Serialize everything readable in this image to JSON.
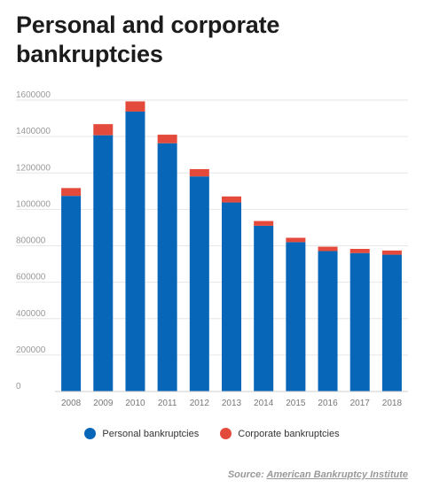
{
  "title": "Personal and corporate bankruptcies",
  "legend": {
    "personal": "Personal bankruptcies",
    "corporate": "Corporate bankruptcies"
  },
  "source": {
    "prefix": "Source: ",
    "link_text": "American Bankruptcy Institute"
  },
  "colors": {
    "personal": "#0866b9",
    "corporate": "#e34a3b"
  },
  "chart_data": {
    "type": "bar",
    "stacked": true,
    "categories": [
      "2008",
      "2009",
      "2010",
      "2011",
      "2012",
      "2013",
      "2014",
      "2015",
      "2016",
      "2017",
      "2018"
    ],
    "series": [
      {
        "name": "Personal bankruptcies",
        "values": [
          1074000,
          1407000,
          1537000,
          1363000,
          1181000,
          1038000,
          910000,
          820000,
          771000,
          760000,
          751000
        ]
      },
      {
        "name": "Corporate bankruptcies",
        "values": [
          43000,
          61000,
          56000,
          47000,
          40000,
          33000,
          26000,
          24000,
          24000,
          23000,
          23000
        ]
      }
    ],
    "yticks": [
      "0",
      "200000",
      "400000",
      "600000",
      "800000",
      "1000000",
      "1200000",
      "1400000",
      "1600000"
    ],
    "ylim": [
      0,
      1600000
    ],
    "grid": true,
    "legend_position": "bottom"
  }
}
